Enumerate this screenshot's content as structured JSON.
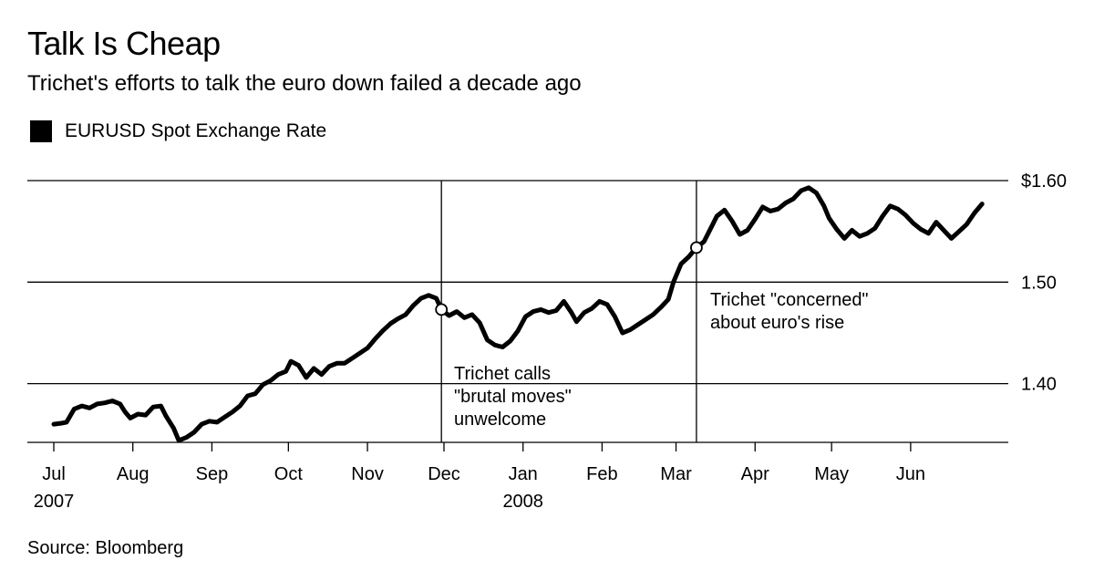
{
  "header": {
    "title": "Talk Is Cheap",
    "subtitle": "Trichet's efforts to talk the euro down failed a decade ago"
  },
  "legend": {
    "label": "EURUSD Spot Exchange Rate",
    "color": "#000000"
  },
  "source": "Source: Bloomberg",
  "chart_data": {
    "type": "line",
    "title": "Talk Is Cheap",
    "subtitle": "Trichet's efforts to talk the euro down failed a decade ago",
    "xlabel": "",
    "ylabel": "",
    "x_range": [
      "2007-07-01",
      "2008-06-30"
    ],
    "ylim": [
      1.342,
      1.6
    ],
    "y_ticks": [
      {
        "value": 1.6,
        "label": "$1.60"
      },
      {
        "value": 1.5,
        "label": "1.50"
      },
      {
        "value": 1.4,
        "label": "1.40"
      }
    ],
    "x_ticks": [
      {
        "date": "2007-07-01",
        "label": "Jul",
        "sublabel": "2007"
      },
      {
        "date": "2007-08-01",
        "label": "Aug",
        "sublabel": ""
      },
      {
        "date": "2007-09-01",
        "label": "Sep",
        "sublabel": ""
      },
      {
        "date": "2007-10-01",
        "label": "Oct",
        "sublabel": ""
      },
      {
        "date": "2007-11-01",
        "label": "Nov",
        "sublabel": ""
      },
      {
        "date": "2007-12-01",
        "label": "Dec",
        "sublabel": ""
      },
      {
        "date": "2008-01-01",
        "label": "Jan",
        "sublabel": "2008"
      },
      {
        "date": "2008-02-01",
        "label": "Feb",
        "sublabel": ""
      },
      {
        "date": "2008-03-01",
        "label": "Mar",
        "sublabel": ""
      },
      {
        "date": "2008-04-01",
        "label": "Apr",
        "sublabel": ""
      },
      {
        "date": "2008-05-01",
        "label": "May",
        "sublabel": ""
      },
      {
        "date": "2008-06-01",
        "label": "Jun",
        "sublabel": ""
      }
    ],
    "grid": "horizontal",
    "legend_position": "top-left",
    "series": [
      {
        "name": "EURUSD Spot Exchange Rate",
        "color": "#000000",
        "points": [
          [
            "2007-07-01",
            1.36
          ],
          [
            "2007-07-04",
            1.361
          ],
          [
            "2007-07-06",
            1.362
          ],
          [
            "2007-07-09",
            1.375
          ],
          [
            "2007-07-12",
            1.378
          ],
          [
            "2007-07-15",
            1.376
          ],
          [
            "2007-07-18",
            1.38
          ],
          [
            "2007-07-21",
            1.381
          ],
          [
            "2007-07-24",
            1.383
          ],
          [
            "2007-07-27",
            1.38
          ],
          [
            "2007-07-29",
            1.372
          ],
          [
            "2007-07-31",
            1.366
          ],
          [
            "2007-08-03",
            1.37
          ],
          [
            "2007-08-06",
            1.369
          ],
          [
            "2007-08-09",
            1.377
          ],
          [
            "2007-08-12",
            1.378
          ],
          [
            "2007-08-14",
            1.368
          ],
          [
            "2007-08-17",
            1.356
          ],
          [
            "2007-08-19",
            1.344
          ],
          [
            "2007-08-22",
            1.347
          ],
          [
            "2007-08-25",
            1.352
          ],
          [
            "2007-08-28",
            1.36
          ],
          [
            "2007-08-31",
            1.363
          ],
          [
            "2007-09-03",
            1.362
          ],
          [
            "2007-09-06",
            1.367
          ],
          [
            "2007-09-09",
            1.372
          ],
          [
            "2007-09-12",
            1.378
          ],
          [
            "2007-09-15",
            1.388
          ],
          [
            "2007-09-18",
            1.39
          ],
          [
            "2007-09-21",
            1.399
          ],
          [
            "2007-09-24",
            1.403
          ],
          [
            "2007-09-27",
            1.409
          ],
          [
            "2007-09-30",
            1.412
          ],
          [
            "2007-10-02",
            1.422
          ],
          [
            "2007-10-05",
            1.418
          ],
          [
            "2007-10-08",
            1.406
          ],
          [
            "2007-10-11",
            1.415
          ],
          [
            "2007-10-14",
            1.409
          ],
          [
            "2007-10-17",
            1.417
          ],
          [
            "2007-10-20",
            1.42
          ],
          [
            "2007-10-23",
            1.42
          ],
          [
            "2007-10-26",
            1.425
          ],
          [
            "2007-10-29",
            1.43
          ],
          [
            "2007-11-01",
            1.435
          ],
          [
            "2007-11-04",
            1.444
          ],
          [
            "2007-11-07",
            1.452
          ],
          [
            "2007-11-10",
            1.459
          ],
          [
            "2007-11-13",
            1.464
          ],
          [
            "2007-11-16",
            1.468
          ],
          [
            "2007-11-19",
            1.477
          ],
          [
            "2007-11-22",
            1.484
          ],
          [
            "2007-11-25",
            1.487
          ],
          [
            "2007-11-28",
            1.484
          ],
          [
            "2007-11-30",
            1.473
          ],
          [
            "2007-12-03",
            1.467
          ],
          [
            "2007-12-06",
            1.471
          ],
          [
            "2007-12-09",
            1.465
          ],
          [
            "2007-12-12",
            1.468
          ],
          [
            "2007-12-15",
            1.46
          ],
          [
            "2007-12-18",
            1.443
          ],
          [
            "2007-12-21",
            1.438
          ],
          [
            "2007-12-24",
            1.436
          ],
          [
            "2007-12-27",
            1.442
          ],
          [
            "2007-12-30",
            1.452
          ],
          [
            "2008-01-02",
            1.466
          ],
          [
            "2008-01-05",
            1.471
          ],
          [
            "2008-01-08",
            1.473
          ],
          [
            "2008-01-11",
            1.47
          ],
          [
            "2008-01-14",
            1.472
          ],
          [
            "2008-01-17",
            1.481
          ],
          [
            "2008-01-20",
            1.47
          ],
          [
            "2008-01-22",
            1.461
          ],
          [
            "2008-01-25",
            1.47
          ],
          [
            "2008-01-28",
            1.474
          ],
          [
            "2008-01-31",
            1.481
          ],
          [
            "2008-02-03",
            1.478
          ],
          [
            "2008-02-06",
            1.466
          ],
          [
            "2008-02-09",
            1.45
          ],
          [
            "2008-02-12",
            1.453
          ],
          [
            "2008-02-15",
            1.458
          ],
          [
            "2008-02-18",
            1.463
          ],
          [
            "2008-02-21",
            1.468
          ],
          [
            "2008-02-24",
            1.475
          ],
          [
            "2008-02-27",
            1.483
          ],
          [
            "2008-02-29",
            1.5
          ],
          [
            "2008-03-03",
            1.518
          ],
          [
            "2008-03-06",
            1.525
          ],
          [
            "2008-03-09",
            1.534
          ],
          [
            "2008-03-12",
            1.54
          ],
          [
            "2008-03-15",
            1.555
          ],
          [
            "2008-03-17",
            1.565
          ],
          [
            "2008-03-20",
            1.571
          ],
          [
            "2008-03-23",
            1.56
          ],
          [
            "2008-03-26",
            1.547
          ],
          [
            "2008-03-29",
            1.551
          ],
          [
            "2008-04-01",
            1.562
          ],
          [
            "2008-04-04",
            1.574
          ],
          [
            "2008-04-07",
            1.57
          ],
          [
            "2008-04-10",
            1.572
          ],
          [
            "2008-04-13",
            1.578
          ],
          [
            "2008-04-16",
            1.582
          ],
          [
            "2008-04-19",
            1.59
          ],
          [
            "2008-04-22",
            1.593
          ],
          [
            "2008-04-25",
            1.588
          ],
          [
            "2008-04-28",
            1.575
          ],
          [
            "2008-04-30",
            1.563
          ],
          [
            "2008-05-03",
            1.552
          ],
          [
            "2008-05-06",
            1.543
          ],
          [
            "2008-05-09",
            1.551
          ],
          [
            "2008-05-12",
            1.545
          ],
          [
            "2008-05-15",
            1.548
          ],
          [
            "2008-05-18",
            1.553
          ],
          [
            "2008-05-21",
            1.565
          ],
          [
            "2008-05-24",
            1.575
          ],
          [
            "2008-05-27",
            1.572
          ],
          [
            "2008-05-30",
            1.566
          ],
          [
            "2008-06-02",
            1.558
          ],
          [
            "2008-06-05",
            1.552
          ],
          [
            "2008-06-08",
            1.548
          ],
          [
            "2008-06-11",
            1.559
          ],
          [
            "2008-06-14",
            1.551
          ],
          [
            "2008-06-17",
            1.543
          ],
          [
            "2008-06-20",
            1.55
          ],
          [
            "2008-06-23",
            1.557
          ],
          [
            "2008-06-26",
            1.568
          ],
          [
            "2008-06-29",
            1.577
          ]
        ]
      }
    ],
    "annotations": [
      {
        "date": "2007-11-30",
        "value": 1.473,
        "lines": [
          "Trichet calls",
          "\"brutal moves\"",
          "unwelcome"
        ]
      },
      {
        "date": "2008-03-09",
        "value": 1.534,
        "lines": [
          "Trichet \"concerned\"",
          "about euro's rise"
        ]
      }
    ]
  }
}
